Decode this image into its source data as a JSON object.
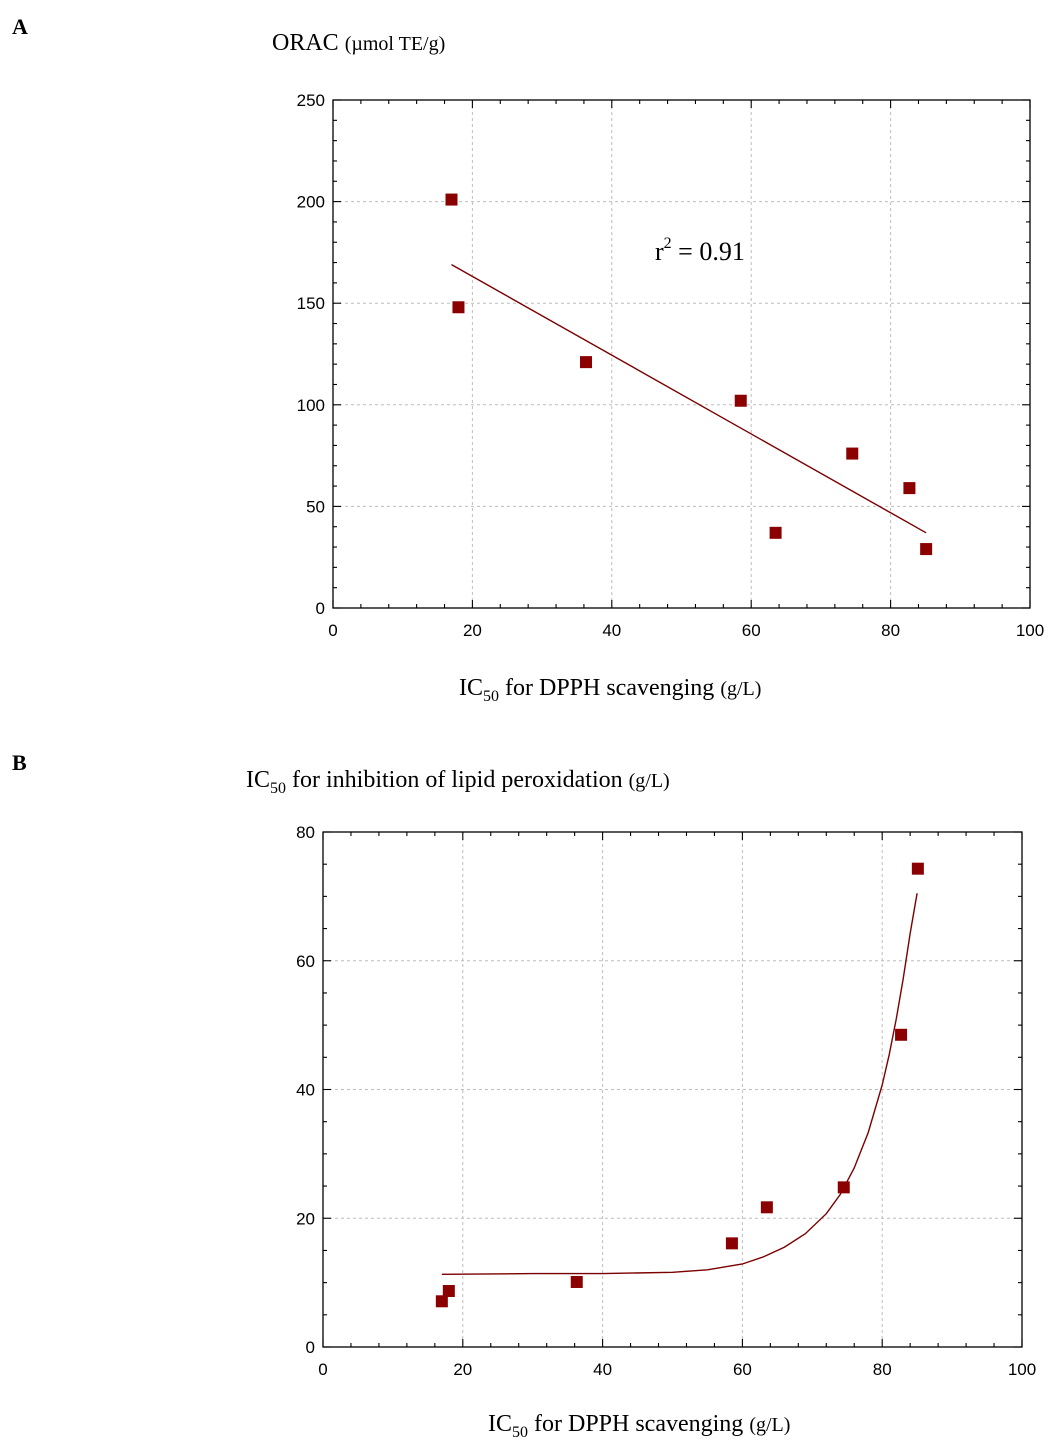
{
  "figure": {
    "panels": [
      {
        "letter": "A",
        "ylabel": {
          "main": "ORAC",
          "unit": "(µmol TE/g)"
        },
        "xlabel": {
          "main": "IC",
          "sub": "50",
          "rest": " for DPPH scavenging ",
          "unit": "(g/L)"
        },
        "annotation": {
          "base": "r",
          "sup": "2",
          "rest": " = 0.91"
        }
      },
      {
        "letter": "B",
        "ylabel": {
          "main": "IC",
          "sub": "50",
          "rest": " for inhibition of lipid peroxidation ",
          "unit": "(g/L)"
        },
        "xlabel": {
          "main": "IC",
          "sub": "50",
          "rest": " for DPPH scavenging ",
          "unit": "(g/L)"
        }
      }
    ]
  },
  "chart_data": [
    {
      "type": "scatter",
      "xlim": [
        0,
        100
      ],
      "ylim": [
        0,
        250
      ],
      "xticks": [
        0,
        20,
        40,
        60,
        80,
        100
      ],
      "yticks": [
        0,
        50,
        100,
        150,
        200,
        250
      ],
      "grid": true,
      "marker_color": "#8b0000",
      "line_color": "#7a0000",
      "series": [
        {
          "x": [
            17.0,
            18.0,
            36.3,
            58.5,
            63.5,
            74.5,
            82.7,
            85.1
          ],
          "y": [
            201,
            148,
            121,
            102,
            37,
            76,
            59,
            29
          ]
        }
      ],
      "fit": {
        "kind": "linear",
        "x": [
          17.0,
          85.1
        ],
        "y": [
          169,
          37
        ]
      },
      "annotation": "r² = 0.91"
    },
    {
      "type": "scatter",
      "xlim": [
        0,
        100
      ],
      "ylim": [
        0,
        80
      ],
      "xticks": [
        0,
        20,
        40,
        60,
        80,
        100
      ],
      "yticks": [
        0,
        20,
        40,
        60,
        80
      ],
      "grid": true,
      "marker_color": "#8b0000",
      "line_color": "#7a0000",
      "series": [
        {
          "x": [
            17.0,
            18.0,
            36.3,
            58.5,
            63.5,
            74.5,
            82.7,
            85.1
          ],
          "y": [
            7.1,
            8.7,
            10.1,
            16.1,
            21.7,
            24.8,
            48.5,
            74.3
          ]
        }
      ],
      "fit": {
        "kind": "exponential",
        "x": [
          17,
          30,
          40,
          50,
          55,
          60,
          63,
          66,
          69,
          72,
          74,
          76,
          78,
          80,
          81,
          82,
          83,
          84,
          85
        ],
        "y": [
          11.3,
          11.4,
          11.4,
          11.6,
          12.0,
          12.9,
          14.0,
          15.5,
          17.6,
          20.7,
          23.7,
          27.8,
          33.3,
          40.7,
          45.4,
          50.9,
          57.2,
          64.3,
          70.5
        ]
      }
    }
  ]
}
